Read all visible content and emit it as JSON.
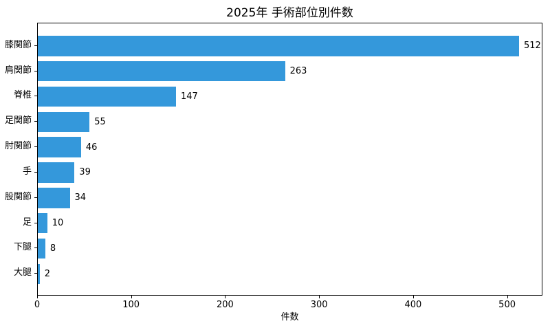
{
  "chart_data": {
    "type": "bar",
    "orientation": "horizontal",
    "title": "2025年 手術部位別件数",
    "xlabel": "件数",
    "ylabel": "",
    "categories": [
      "膝関節",
      "肩関節",
      "脊椎",
      "足関節",
      "肘関節",
      "手",
      "股関節",
      "足",
      "下腿",
      "大腿"
    ],
    "values": [
      512,
      263,
      147,
      55,
      46,
      39,
      34,
      10,
      8,
      2
    ],
    "xlim": [
      0,
      537.6
    ],
    "xticks": [
      0,
      100,
      200,
      300,
      400,
      500
    ],
    "bar_color": "#3498db",
    "value_labels_shown": true,
    "grid": false,
    "legend": null
  }
}
